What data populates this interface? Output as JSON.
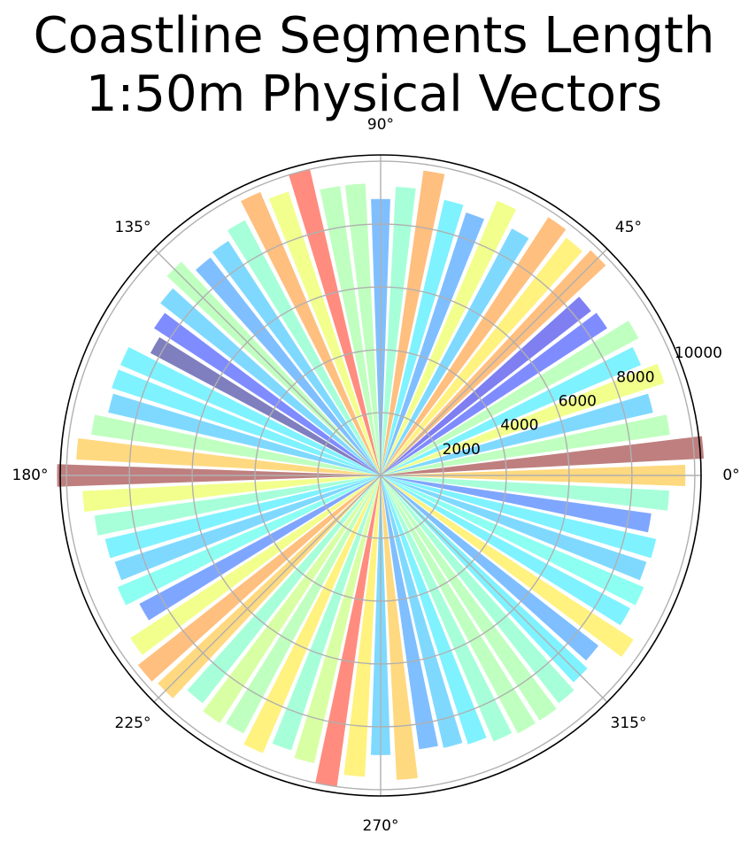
{
  "chart_data": {
    "type": "bar",
    "projection": "polar",
    "title_lines": [
      "Coastline Segments Length",
      "1:50m Physical Vectors"
    ],
    "theta_tick_labels": [
      "0°",
      "45°",
      "90°",
      "135°",
      "180°",
      "225°",
      "270°",
      "315°"
    ],
    "theta_ticks_deg": [
      0,
      45,
      90,
      135,
      180,
      225,
      270,
      315
    ],
    "r_tick_labels": [
      "2000",
      "4000",
      "6000",
      "8000",
      "10000"
    ],
    "r_ticks": [
      2000,
      4000,
      6000,
      8000,
      10000
    ],
    "rlim": [
      0,
      10200
    ],
    "grid": true,
    "colormap": "jet (alpha 0.5), color mapped to length",
    "bin_width_deg": 5,
    "angles_deg": [
      0,
      5,
      10,
      15,
      20,
      25,
      30,
      35,
      40,
      45,
      50,
      55,
      60,
      65,
      70,
      75,
      80,
      85,
      90,
      95,
      100,
      105,
      110,
      115,
      120,
      125,
      130,
      135,
      140,
      145,
      150,
      155,
      160,
      165,
      170,
      175,
      180,
      185,
      190,
      195,
      200,
      205,
      210,
      215,
      220,
      225,
      230,
      235,
      240,
      245,
      250,
      255,
      260,
      265,
      270,
      275,
      280,
      285,
      290,
      295,
      300,
      305,
      310,
      315,
      320,
      325,
      330,
      335,
      340,
      345,
      350,
      355
    ],
    "values": [
      9700,
      10300,
      9300,
      8900,
      9500,
      9000,
      9300,
      8600,
      8500,
      9800,
      9600,
      9800,
      8900,
      9500,
      8800,
      9000,
      9800,
      9200,
      8800,
      9300,
      9300,
      10000,
      9500,
      9800,
      9200,
      8900,
      8800,
      9300,
      8900,
      8600,
      8300,
      9000,
      9000,
      8900,
      9300,
      9700,
      10300,
      9500,
      9200,
      9000,
      8900,
      9100,
      8700,
      9500,
      9800,
      9700,
      9200,
      9400,
      9300,
      9600,
      9200,
      9400,
      10000,
      9600,
      8900,
      9700,
      8800,
      8900,
      9000,
      9200,
      9300,
      9300,
      9200,
      9000,
      8800,
      9600,
      9000,
      9100,
      8900,
      9000,
      8700,
      9200
    ]
  }
}
